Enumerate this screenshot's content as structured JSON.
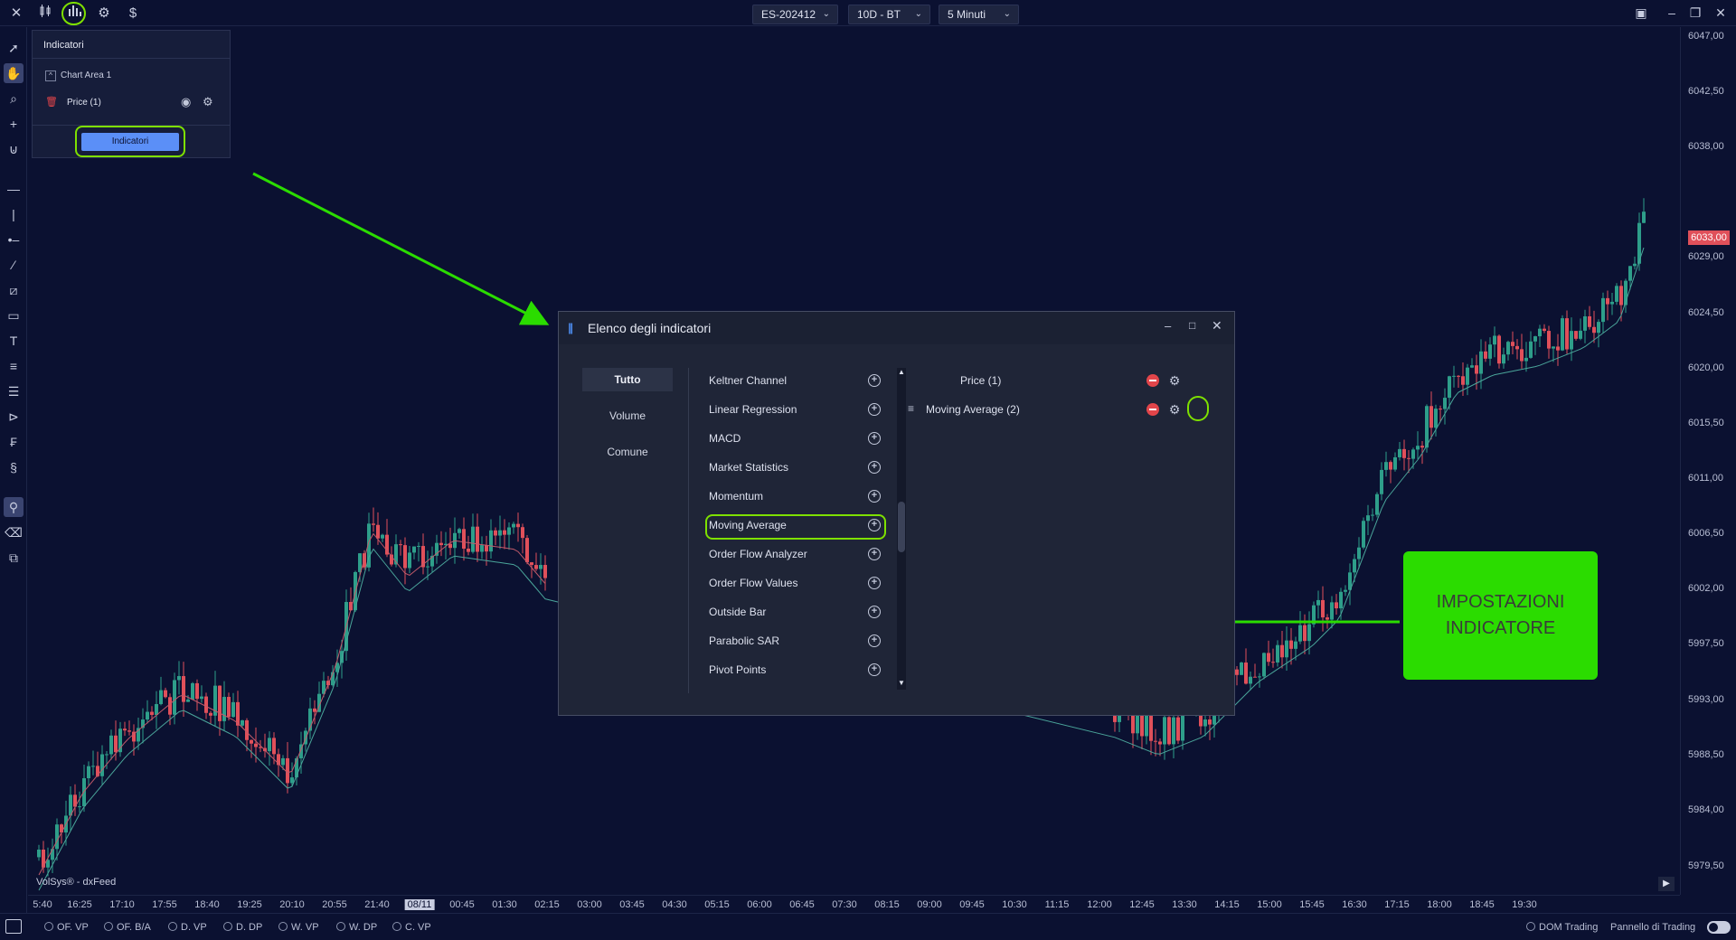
{
  "topbar": {
    "symbol": "ES-202412",
    "period": "10D - BT",
    "timeframe": "5 Minuti"
  },
  "panel": {
    "title": "Indicatori",
    "area": "Chart Area 1",
    "item": "Price (1)",
    "button": "Indicatori"
  },
  "dialog": {
    "title": "Elenco degli indicatori",
    "categories": [
      "Tutto",
      "Volume",
      "Comune"
    ],
    "indicators": [
      "Keltner Channel",
      "Linear Regression",
      "MACD",
      "Market Statistics",
      "Momentum",
      "Moving Average",
      "Order Flow Analyzer",
      "Order Flow Values",
      "Outside Bar",
      "Parabolic SAR",
      "Pivot Points"
    ],
    "active": [
      "Price (1)",
      "Moving Average (2)"
    ]
  },
  "callout": {
    "line1": "IMPOSTAZIONI",
    "line2": "INDICATORE"
  },
  "chart": {
    "price_labels": [
      "6047,00",
      "6042,50",
      "6038,00",
      "6029,00",
      "6024,50",
      "6020,00",
      "6015,50",
      "6011,00",
      "6006,50",
      "6002,00",
      "5997,50",
      "5993,00",
      "5988,50",
      "5984,00",
      "5979,50"
    ],
    "current_price": "6033,00",
    "time_labels": [
      "5:40",
      "16:25",
      "17:10",
      "17:55",
      "18:40",
      "19:25",
      "20:10",
      "20:55",
      "21:40",
      "08/11",
      "00:45",
      "01:30",
      "02:15",
      "03:00",
      "03:45",
      "04:30",
      "05:15",
      "06:00",
      "06:45",
      "07:30",
      "08:15",
      "09:00",
      "09:45",
      "10:30",
      "11:15",
      "12:00",
      "12:45",
      "13:30",
      "14:15",
      "15:00",
      "15:45",
      "16:30",
      "17:15",
      "18:00",
      "18:45",
      "19:30"
    ],
    "watermark": "VolSys® - dxFeed"
  },
  "bottombar": {
    "studies": [
      "OF. VP",
      "OF. B/A",
      "D. VP",
      "D. DP",
      "W. VP",
      "W. DP",
      "C. VP"
    ],
    "dom": "DOM Trading",
    "panel": "Pannello di Trading"
  },
  "colors": {
    "up": "#2e9e8a",
    "down": "#e0505a",
    "accent": "#7ee000",
    "button": "#5b8ff7"
  }
}
